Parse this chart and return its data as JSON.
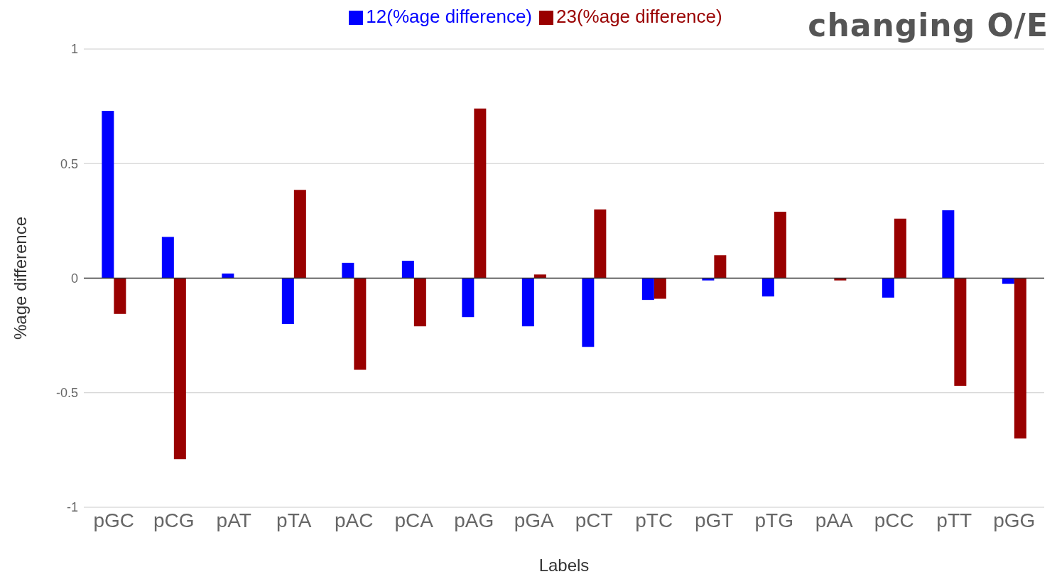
{
  "chart_data": {
    "type": "bar",
    "title": "changing O/E",
    "xlabel": "Labels",
    "ylabel": "%age difference",
    "categories": [
      "pGC",
      "pCG",
      "pAT",
      "pTA",
      "pAC",
      "pCA",
      "pAG",
      "pGA",
      "pCT",
      "pTC",
      "pGT",
      "pTG",
      "pAA",
      "pCC",
      "pTT",
      "pGG"
    ],
    "series": [
      {
        "name": "12(%age difference)",
        "color": "#0000ff",
        "values": [
          0.73,
          0.18,
          0.02,
          -0.2,
          0.067,
          0.076,
          -0.17,
          -0.21,
          -0.3,
          -0.095,
          -0.01,
          -0.08,
          null,
          -0.085,
          0.296,
          -0.025
        ]
      },
      {
        "name": "23(%age difference)",
        "color": "#990000",
        "values": [
          -0.156,
          -0.79,
          0,
          0.385,
          -0.4,
          -0.21,
          0.74,
          0.016,
          0.3,
          -0.09,
          0.1,
          0.29,
          -0.01,
          0.26,
          -0.47,
          -0.7
        ]
      }
    ],
    "ylim": [
      -1,
      1
    ],
    "yticks": [
      -1,
      -0.5,
      0,
      0.5,
      1
    ],
    "grid": "y",
    "legend": "top"
  }
}
